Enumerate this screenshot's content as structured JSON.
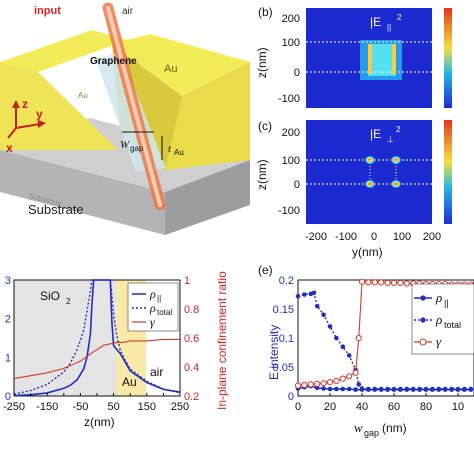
{
  "panel_a": {
    "labels": {
      "input": "input",
      "air": "air",
      "graphene": "Graphene",
      "au": "Au",
      "au_small": "Au",
      "wgap": "W",
      "wgap_sub": "gap",
      "tau": "t",
      "tau_sub": "Au",
      "substrate_small": "Substrate",
      "substrate": "Substrate",
      "axis_z": "z",
      "axis_y": "y",
      "axis_x": "x"
    },
    "colors": {
      "gold_top": "#f3ec58",
      "gold_side": "#d7c93a",
      "substrate": "#b9b9b9",
      "fiber": "#f08a5a"
    }
  },
  "panel_b": {
    "label": "(b)",
    "title": "|E",
    "title_sub": "||",
    "title_sup": "2",
    "ylabel": "z(nm)",
    "yticks": [
      "200",
      "100",
      "0",
      "-100"
    ]
  },
  "panel_c": {
    "label": "(c)",
    "title": "|E",
    "title_sub": "⊥",
    "title_sup": "2",
    "ylabel": "z(nm)",
    "yticks": [
      "200",
      "100",
      "0",
      "-100"
    ],
    "xticks": [
      "-200",
      "-100",
      "0",
      "100",
      "200"
    ],
    "xlabel": "y(nm)"
  },
  "chart_data": [
    {
      "type": "line",
      "panel": "d",
      "xlabel": "z(nm)",
      "ylabel_right": "In-plane confinement ratio",
      "xlim": [
        -250,
        250
      ],
      "ylim_left": [
        0,
        3
      ],
      "ylim_right": [
        0.2,
        1
      ],
      "xticks": [
        "-250",
        "-200",
        "-150",
        "-100",
        "-50",
        "0",
        "50",
        "100",
        "150",
        "200",
        "250"
      ],
      "yticks_left": [
        "0",
        "1",
        "2",
        "3"
      ],
      "yticks_right": [
        "0.2",
        "0.4",
        "0.6",
        "0.8",
        "1"
      ],
      "regions": {
        "left": "SiO",
        "left_sub": "2",
        "middle": "Au",
        "right": "air"
      },
      "legend": [
        {
          "name": "ρ",
          "sub": "||"
        },
        {
          "name": "ρ",
          "sub": "total"
        },
        {
          "name": "γ",
          "sub": ""
        }
      ],
      "series": [
        {
          "name": "rho_par",
          "axis": "left",
          "x": [
            -250,
            -200,
            -150,
            -100,
            -80,
            -60,
            -40,
            -30,
            -20,
            -15,
            -10,
            0,
            10,
            20,
            30,
            40,
            45,
            50,
            60,
            70,
            80,
            100,
            150,
            200,
            250
          ],
          "values": [
            0.01,
            0.03,
            0.08,
            0.2,
            0.28,
            0.42,
            0.7,
            1.0,
            1.6,
            2.4,
            3,
            3,
            3,
            3,
            3,
            3,
            1.9,
            1.3,
            1.2,
            1.1,
            0.95,
            0.65,
            0.35,
            0.17,
            0.1
          ]
        },
        {
          "name": "rho_total",
          "axis": "left",
          "x": [
            -250,
            -200,
            -150,
            -100,
            -80,
            -60,
            -40,
            -30,
            -20,
            -15,
            -10,
            0,
            10,
            20,
            30,
            40,
            45,
            50,
            60,
            70,
            80,
            100,
            150,
            200,
            250
          ],
          "values": [
            0.05,
            0.14,
            0.3,
            0.62,
            0.85,
            1.2,
            1.7,
            2.2,
            2.7,
            3,
            3,
            3,
            3,
            3,
            3,
            3,
            2.6,
            2.1,
            1.55,
            1.2,
            1.0,
            0.7,
            0.38,
            0.18,
            0.08
          ]
        },
        {
          "name": "gamma",
          "axis": "right",
          "x": [
            -250,
            -200,
            -150,
            -100,
            -50,
            -20,
            0,
            20,
            40,
            60,
            80,
            100,
            150,
            200,
            250
          ],
          "values": [
            0.32,
            0.34,
            0.36,
            0.39,
            0.44,
            0.49,
            0.52,
            0.55,
            0.56,
            0.57,
            0.57,
            0.58,
            0.58,
            0.59,
            0.59
          ]
        }
      ]
    },
    {
      "type": "line",
      "panel": "e",
      "label": "(e)",
      "xlabel": "w",
      "xlabel_sub": "gap",
      "xlabel_unit": "(nm)",
      "ylabel": "E intensity",
      "xlim": [
        0,
        110
      ],
      "ylim": [
        0,
        0.2
      ],
      "xticks": [
        "0",
        "20",
        "40",
        "60",
        "80",
        "10"
      ],
      "yticks": [
        "0",
        "0.05",
        "0.1",
        "0.15",
        "0.2"
      ],
      "legend": [
        {
          "name": "ρ",
          "sub": "||"
        },
        {
          "name": "ρ",
          "sub": "total"
        },
        {
          "name": "γ",
          "sub": ""
        }
      ],
      "series": [
        {
          "name": "rho_par",
          "x": [
            0,
            4,
            8,
            12,
            16,
            20,
            24,
            28,
            32,
            36,
            40,
            44,
            48,
            52,
            56,
            60,
            64,
            68,
            72,
            76,
            80,
            84,
            88,
            92,
            96,
            100,
            104,
            108
          ],
          "values": [
            0.013,
            0.015,
            0.017,
            0.014,
            0.013,
            0.012,
            0.012,
            0.012,
            0.012,
            0.011,
            0.011,
            0.011,
            0.011,
            0.011,
            0.011,
            0.011,
            0.011,
            0.011,
            0.011,
            0.011,
            0.011,
            0.011,
            0.011,
            0.011,
            0.011,
            0.011,
            0.011,
            0.011
          ]
        },
        {
          "name": "rho_total",
          "x": [
            0,
            4,
            8,
            10,
            12,
            16,
            20,
            24,
            28,
            32,
            36,
            38,
            40,
            44,
            48,
            52,
            56,
            60,
            64,
            68,
            72,
            76,
            80,
            84,
            88,
            92,
            96,
            100,
            104,
            108
          ],
          "values": [
            0.172,
            0.175,
            0.176,
            0.178,
            0.155,
            0.14,
            0.12,
            0.1,
            0.085,
            0.07,
            0.045,
            0.02,
            0.013,
            0.012,
            0.012,
            0.012,
            0.012,
            0.012,
            0.012,
            0.012,
            0.012,
            0.012,
            0.012,
            0.012,
            0.012,
            0.012,
            0.012,
            0.012,
            0.012,
            0.012
          ]
        },
        {
          "name": "gamma",
          "x": [
            0,
            4,
            8,
            12,
            16,
            20,
            24,
            28,
            32,
            36,
            38,
            40,
            44,
            48,
            52,
            56,
            60,
            64,
            68,
            72,
            76,
            80,
            84,
            88,
            92,
            96,
            100,
            104,
            108
          ],
          "values": [
            0.018,
            0.019,
            0.02,
            0.021,
            0.022,
            0.024,
            0.026,
            0.03,
            0.034,
            0.04,
            0.1,
            0.197,
            0.196,
            0.196,
            0.196,
            0.195,
            0.195,
            0.195,
            0.194,
            0.194,
            0.194,
            0.193,
            0.193,
            0.193,
            0.193,
            0.192,
            0.192,
            0.192,
            0.192
          ]
        }
      ]
    }
  ]
}
